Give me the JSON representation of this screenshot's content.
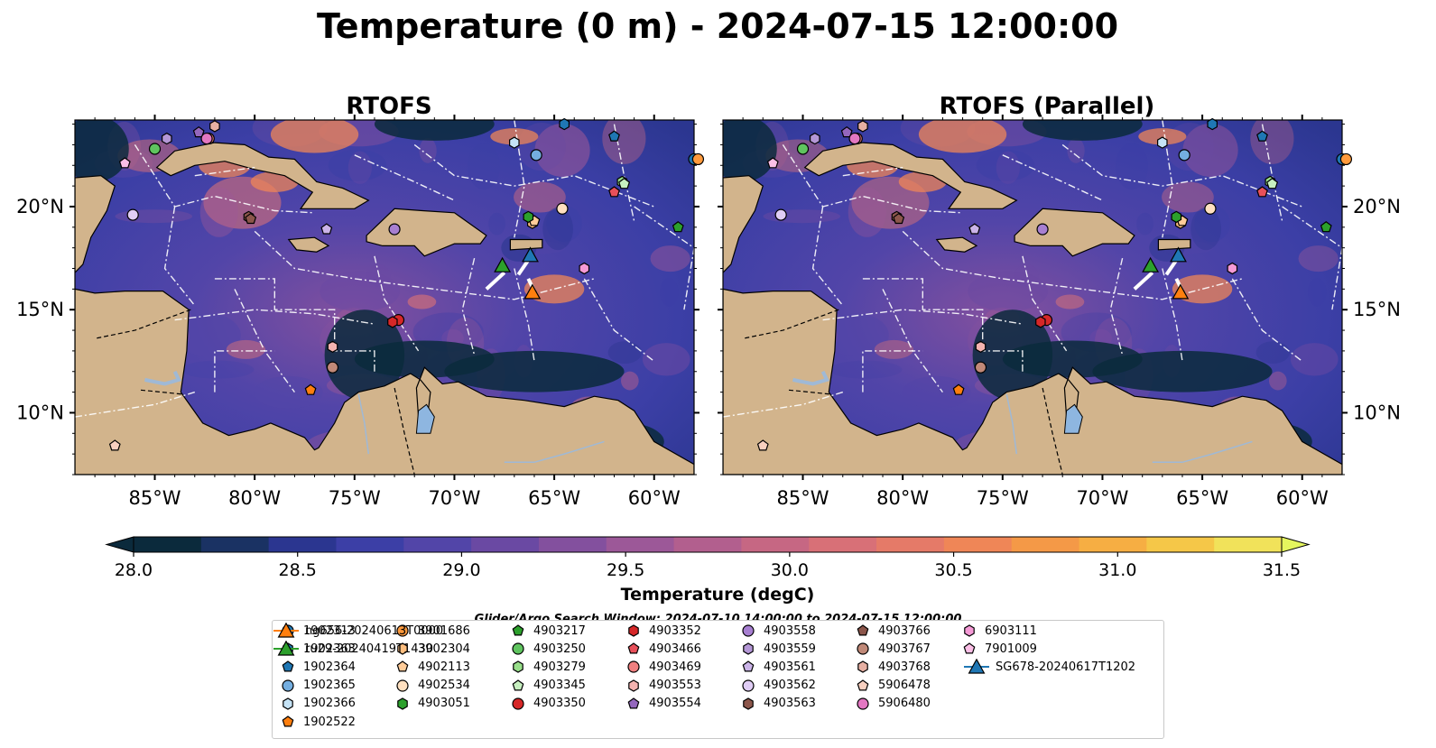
{
  "title": "Temperature (0 m) - 2024-07-15 12:00:00",
  "panels": [
    {
      "title": "RTOFS"
    },
    {
      "title": "RTOFS (Parallel)"
    }
  ],
  "colorbar": {
    "label": "Temperature (degC)",
    "ticks": [
      "28.0",
      "28.5",
      "29.0",
      "29.5",
      "30.0",
      "30.5",
      "31.0",
      "31.5"
    ],
    "colors": [
      "#0b2a3c",
      "#1a3263",
      "#2b3690",
      "#3c3fa6",
      "#5245a8",
      "#6a49a3",
      "#83509e",
      "#9c5898",
      "#b25f8e",
      "#c66783",
      "#d87077",
      "#e57a68",
      "#ef8657",
      "#f49947",
      "#f6ae43",
      "#f5c748",
      "#f1e25a"
    ],
    "extend_low": "#0b2a3c",
    "extend_high": "#e5f65e"
  },
  "search_window": "Glider/Argo Search Window: 2024-07-10 14:00:00 to 2024-07-15 12:00:00",
  "chart_data": {
    "type": "map",
    "projection": "PlateCarree",
    "xlim": [
      -89,
      -58
    ],
    "ylim": [
      7,
      24.2
    ],
    "x_ticks": [
      "85°W",
      "80°W",
      "75°W",
      "70°W",
      "65°W",
      "60°W"
    ],
    "x_tick_values": [
      -85,
      -80,
      -75,
      -70,
      -65,
      -60
    ],
    "y_ticks": [
      "10°N",
      "15°N",
      "20°N"
    ],
    "y_tick_values": [
      10,
      15,
      20
    ],
    "vmin": 28.0,
    "vmax": 31.5,
    "legend": [
      {
        "label": "1902313",
        "marker": "circle",
        "color": "#1f77b4",
        "lon": -58,
        "lat": 22.3
      },
      {
        "label": "1902363",
        "marker": "hexagon",
        "color": "#1f77b4",
        "lon": -64.5,
        "lat": 24.0
      },
      {
        "label": "1902364",
        "marker": "pentagon",
        "color": "#1f77b4",
        "lon": -62.0,
        "lat": 23.4
      },
      {
        "label": "1902365",
        "marker": "circle",
        "color": "#74aee0",
        "lon": -65.9,
        "lat": 22.5
      },
      {
        "label": "1902366",
        "marker": "hexagon",
        "color": "#c5e3f6",
        "lon": -67.0,
        "lat": 23.1
      },
      {
        "label": "1902522",
        "marker": "pentagon",
        "color": "#ff7f0e",
        "lon": -77.2,
        "lat": 11.1
      },
      {
        "label": "3901686",
        "marker": "circle",
        "color": "#ff9a3c",
        "lon": -57.8,
        "lat": 22.3
      },
      {
        "label": "3902304",
        "marker": "hexagon",
        "color": "#ffbf80",
        "lon": -66.1,
        "lat": 19.2
      },
      {
        "label": "4902113",
        "marker": "pentagon",
        "color": "#ffcc99",
        "lon": -66.0,
        "lat": 19.3
      },
      {
        "label": "4902534",
        "marker": "circle",
        "color": "#ffe0c0",
        "lon": -64.6,
        "lat": 19.9
      },
      {
        "label": "4903051",
        "marker": "hexagon",
        "color": "#2ca02c",
        "lon": -66.3,
        "lat": 19.5
      },
      {
        "label": "4903217",
        "marker": "pentagon",
        "color": "#2ca02c",
        "lon": -58.8,
        "lat": 19.0
      },
      {
        "label": "4903250",
        "marker": "circle",
        "color": "#5fc45f",
        "lon": -85.0,
        "lat": 22.8
      },
      {
        "label": "4903279",
        "marker": "hexagon",
        "color": "#98df8a",
        "lon": -61.6,
        "lat": 21.2
      },
      {
        "label": "4903345",
        "marker": "pentagon",
        "color": "#c7f0c0",
        "lon": -61.5,
        "lat": 21.1
      },
      {
        "label": "4903350",
        "marker": "circle",
        "color": "#d62728",
        "lon": -72.8,
        "lat": 14.5
      },
      {
        "label": "4903352",
        "marker": "hexagon",
        "color": "#d62728",
        "lon": -73.1,
        "lat": 14.4
      },
      {
        "label": "4903466",
        "marker": "pentagon",
        "color": "#e8505a",
        "lon": -62.0,
        "lat": 20.7
      },
      {
        "label": "4903469",
        "marker": "circle",
        "color": "#f08080",
        "lon": -82.3,
        "lat": 23.3
      },
      {
        "label": "4903553",
        "marker": "hexagon",
        "color": "#f4b3b0",
        "lon": -76.1,
        "lat": 13.2
      },
      {
        "label": "4903554",
        "marker": "pentagon",
        "color": "#9467bd",
        "lon": -82.8,
        "lat": 23.6
      },
      {
        "label": "4903558",
        "marker": "circle",
        "color": "#a77fd1",
        "lon": -73.0,
        "lat": 18.9
      },
      {
        "label": "4903559",
        "marker": "hexagon",
        "color": "#b497d6",
        "lon": -84.4,
        "lat": 23.3
      },
      {
        "label": "4903561",
        "marker": "pentagon",
        "color": "#cbb4e8",
        "lon": -76.4,
        "lat": 18.9
      },
      {
        "label": "4903562",
        "marker": "circle",
        "color": "#e0cdf5",
        "lon": -86.1,
        "lat": 19.6
      },
      {
        "label": "4903563",
        "marker": "hexagon",
        "color": "#8c564b",
        "lon": -80.3,
        "lat": 19.5
      },
      {
        "label": "4903766",
        "marker": "pentagon",
        "color": "#8c564b",
        "lon": -80.2,
        "lat": 19.4
      },
      {
        "label": "4903767",
        "marker": "circle",
        "color": "#c08978",
        "lon": -76.1,
        "lat": 12.2
      },
      {
        "label": "4903768",
        "marker": "hexagon",
        "color": "#e7b0a3",
        "lon": -82.0,
        "lat": 23.9
      },
      {
        "label": "5906478",
        "marker": "pentagon",
        "color": "#f8d0c0",
        "lon": -87.0,
        "lat": 8.4
      },
      {
        "label": "5906480",
        "marker": "circle",
        "color": "#e377c2",
        "lon": -82.4,
        "lat": 23.3
      },
      {
        "label": "6903111",
        "marker": "hexagon",
        "color": "#f59ad6",
        "lon": -63.5,
        "lat": 17.0
      },
      {
        "label": "7901009",
        "marker": "pentagon",
        "color": "#fbbfe6",
        "lon": -86.5,
        "lat": 22.1
      },
      {
        "label": "SG678-20240617T1202",
        "marker": "triangle",
        "color": "#1f77b4",
        "lon": -66.2,
        "lat": 17.6
      },
      {
        "label": "ng656-20240613T0000",
        "marker": "triangle",
        "color": "#ff7f0e",
        "lon": -66.1,
        "lat": 15.8
      },
      {
        "label": "ru29-20240419T1430",
        "marker": "triangle",
        "color": "#2ca02c",
        "lon": -67.6,
        "lat": 17.1
      }
    ]
  }
}
